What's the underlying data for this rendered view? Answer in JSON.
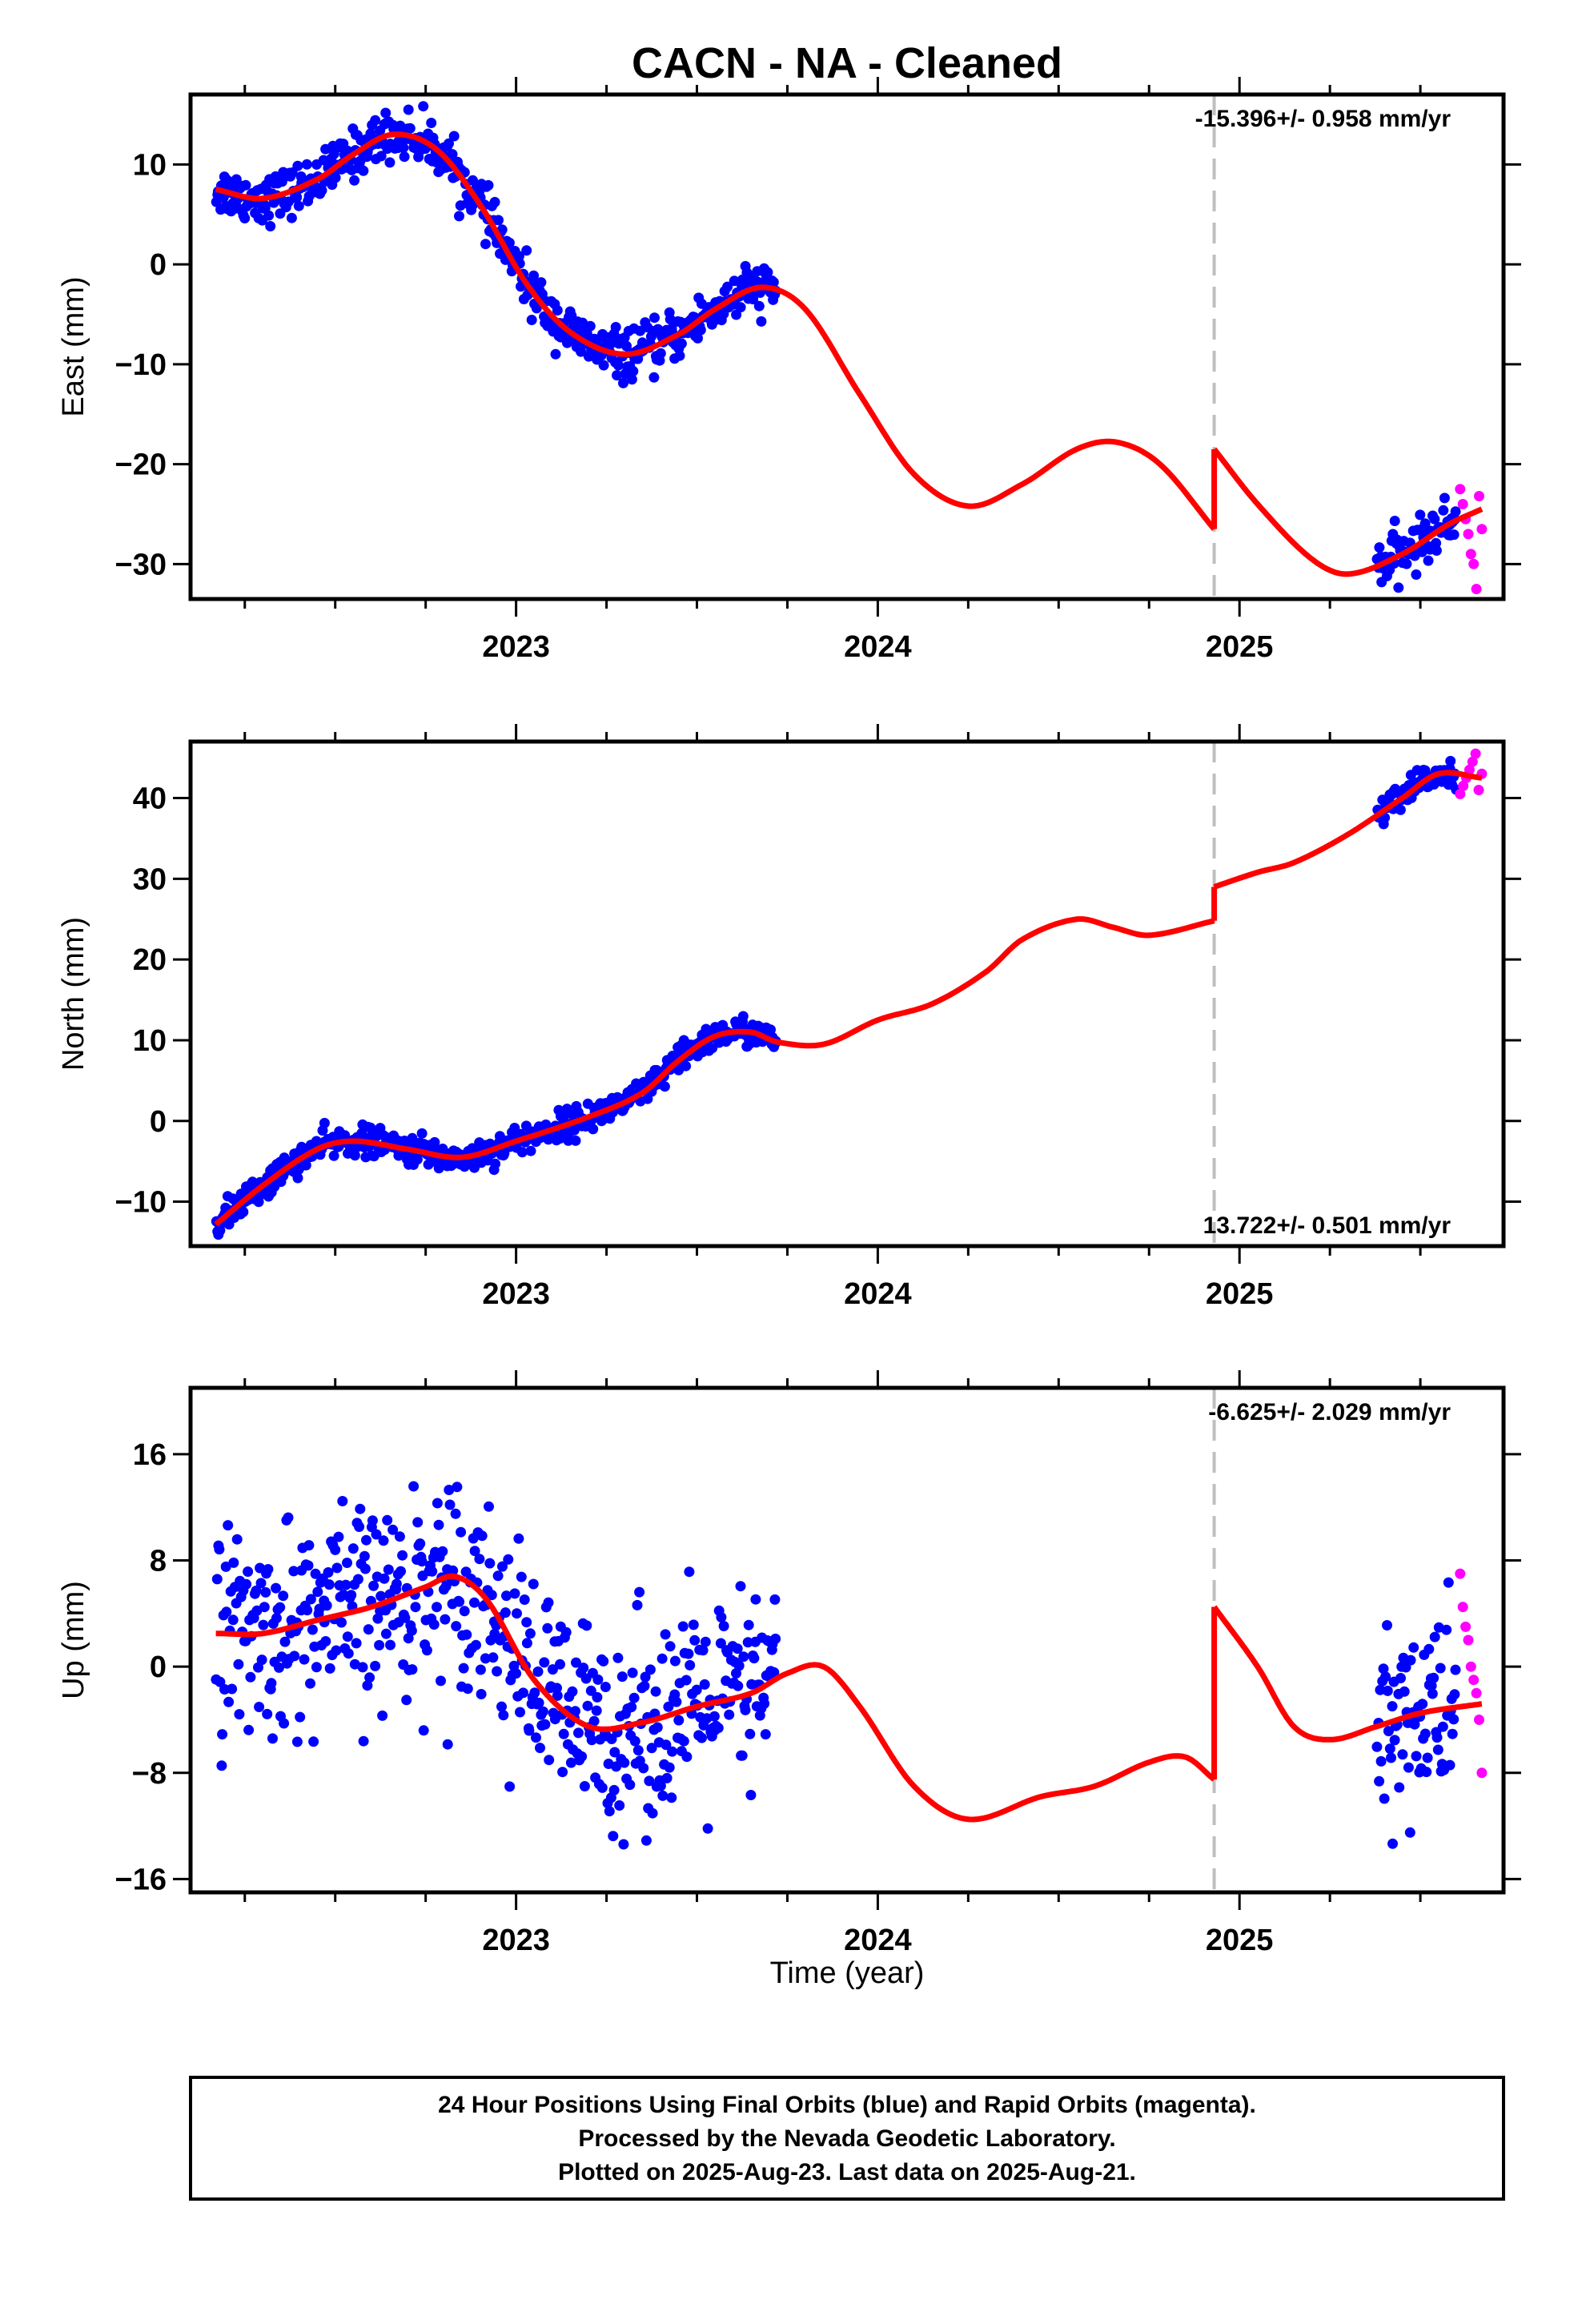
{
  "page": {
    "title": "CACN  - NA - Cleaned",
    "xlabel": "Time (year)"
  },
  "footer": {
    "line1": "24 Hour Positions Using Final Orbits (blue) and Rapid Orbits (magenta).",
    "line2": "Processed by the Nevada Geodetic Laboratory.",
    "line3": "Plotted on 2025-Aug-23. Last data on 2025-Aug-21."
  },
  "colors": {
    "final_orbits": "#0000ff",
    "rapid_orbits": "#ff00ff",
    "model": "#ff0000",
    "break_line": "#bfbfbf"
  },
  "chart_data": [
    {
      "type": "scatter",
      "panel": "east",
      "ylabel": "East (mm)",
      "rate_label": "-15.396+/- 0.958 mm/yr",
      "xlim": [
        2022.1,
        2025.73
      ],
      "ylim": [
        -33.5,
        17
      ],
      "xticks": [
        2023,
        2024,
        2025
      ],
      "yticks": [
        -30,
        -20,
        -10,
        0,
        10
      ],
      "break_epoch": 2024.93,
      "model_knots": [
        [
          2022.17,
          7.5
        ],
        [
          2022.3,
          6.6
        ],
        [
          2022.45,
          8.5
        ],
        [
          2022.55,
          11
        ],
        [
          2022.66,
          13
        ],
        [
          2022.78,
          11.5
        ],
        [
          2022.9,
          6
        ],
        [
          2023.03,
          -2
        ],
        [
          2023.15,
          -6.8
        ],
        [
          2023.3,
          -9
        ],
        [
          2023.45,
          -7
        ],
        [
          2023.55,
          -4.5
        ],
        [
          2023.68,
          -2.3
        ],
        [
          2023.8,
          -4.5
        ],
        [
          2023.95,
          -13
        ],
        [
          2024.1,
          -21
        ],
        [
          2024.25,
          -24.2
        ],
        [
          2024.4,
          -22
        ],
        [
          2024.55,
          -18.5
        ],
        [
          2024.66,
          -17.8
        ],
        [
          2024.78,
          -20
        ],
        [
          2024.93,
          -26.5
        ]
      ],
      "model_knots_after": [
        [
          2024.93,
          -18.5
        ],
        [
          2025.05,
          -24
        ],
        [
          2025.2,
          -29.5
        ],
        [
          2025.3,
          -31
        ],
        [
          2025.45,
          -29
        ],
        [
          2025.58,
          -26
        ],
        [
          2025.67,
          -24.5
        ]
      ],
      "final_segments": [
        [
          2022.17,
          2023.72
        ],
        [
          2025.38,
          2025.6
        ]
      ],
      "rapid_segment": [
        2025.61,
        2025.67
      ],
      "scatter_sd": 1.2,
      "rapid_values": [
        -22.5,
        -24,
        -25.5,
        -27,
        -29,
        -30,
        -32.5,
        -23.2,
        -26.5
      ]
    },
    {
      "type": "scatter",
      "panel": "north",
      "ylabel": "North (mm)",
      "rate_label": "13.722+/- 0.501 mm/yr",
      "xlim": [
        2022.1,
        2025.73
      ],
      "ylim": [
        -15.5,
        47
      ],
      "xticks": [
        2023,
        2024,
        2025
      ],
      "yticks": [
        -10,
        0,
        10,
        20,
        30,
        40
      ],
      "break_epoch": 2024.93,
      "model_knots": [
        [
          2022.17,
          -12.8
        ],
        [
          2022.3,
          -8
        ],
        [
          2022.45,
          -3.5
        ],
        [
          2022.55,
          -2.5
        ],
        [
          2022.7,
          -3.5
        ],
        [
          2022.85,
          -4.5
        ],
        [
          2023.0,
          -2.5
        ],
        [
          2023.2,
          0.5
        ],
        [
          2023.35,
          3.5
        ],
        [
          2023.45,
          7.5
        ],
        [
          2023.55,
          10.5
        ],
        [
          2023.65,
          11
        ],
        [
          2023.72,
          9.8
        ],
        [
          2023.85,
          9.5
        ],
        [
          2024.0,
          12.5
        ],
        [
          2024.15,
          14.5
        ],
        [
          2024.3,
          18.5
        ],
        [
          2024.4,
          22.5
        ],
        [
          2024.55,
          25
        ],
        [
          2024.65,
          24
        ],
        [
          2024.75,
          23
        ],
        [
          2024.93,
          24.8
        ]
      ],
      "model_knots_after": [
        [
          2024.93,
          29
        ],
        [
          2025.05,
          30.8
        ],
        [
          2025.15,
          32
        ],
        [
          2025.3,
          35.5
        ],
        [
          2025.45,
          40
        ],
        [
          2025.55,
          43
        ],
        [
          2025.67,
          42.5
        ]
      ],
      "final_segments": [
        [
          2022.17,
          2023.72
        ],
        [
          2025.38,
          2025.6
        ]
      ],
      "rapid_segment": [
        2025.61,
        2025.67
      ],
      "scatter_sd": 0.9,
      "rapid_values": [
        40.5,
        41.5,
        42.5,
        43.5,
        44.5,
        45.5,
        41,
        43
      ]
    },
    {
      "type": "scatter",
      "panel": "up",
      "ylabel": "Up (mm)",
      "rate_label": "-6.625+/- 2.029 mm/yr",
      "xlim": [
        2022.1,
        2025.73
      ],
      "ylim": [
        -17,
        21
      ],
      "xticks": [
        2023,
        2024,
        2025
      ],
      "yticks": [
        -16,
        -8,
        0,
        8,
        16
      ],
      "break_epoch": 2024.93,
      "model_knots": [
        [
          2022.17,
          2.5
        ],
        [
          2022.3,
          2.5
        ],
        [
          2022.45,
          3.5
        ],
        [
          2022.6,
          4.5
        ],
        [
          2022.75,
          6
        ],
        [
          2022.83,
          6.8
        ],
        [
          2022.92,
          5
        ],
        [
          2023.05,
          -1
        ],
        [
          2023.2,
          -4.5
        ],
        [
          2023.35,
          -4.2
        ],
        [
          2023.5,
          -3
        ],
        [
          2023.65,
          -2
        ],
        [
          2023.75,
          -0.5
        ],
        [
          2023.85,
          0
        ],
        [
          2023.95,
          -3
        ],
        [
          2024.1,
          -9
        ],
        [
          2024.25,
          -11.5
        ],
        [
          2024.45,
          -9.8
        ],
        [
          2024.6,
          -9
        ],
        [
          2024.75,
          -7.2
        ],
        [
          2024.85,
          -6.8
        ],
        [
          2024.93,
          -8.5
        ]
      ],
      "model_knots_after": [
        [
          2024.93,
          4.5
        ],
        [
          2025.05,
          0
        ],
        [
          2025.15,
          -4.5
        ],
        [
          2025.25,
          -5.5
        ],
        [
          2025.38,
          -4.5
        ],
        [
          2025.5,
          -3.5
        ],
        [
          2025.67,
          -2.8
        ]
      ],
      "final_segments": [
        [
          2022.17,
          2023.72
        ],
        [
          2025.38,
          2025.6
        ]
      ],
      "rapid_segment": [
        2025.61,
        2025.67
      ],
      "scatter_sd": 3.8,
      "rapid_values": [
        7,
        4.5,
        3,
        2,
        0,
        -1,
        -2,
        -4,
        -8
      ]
    }
  ]
}
